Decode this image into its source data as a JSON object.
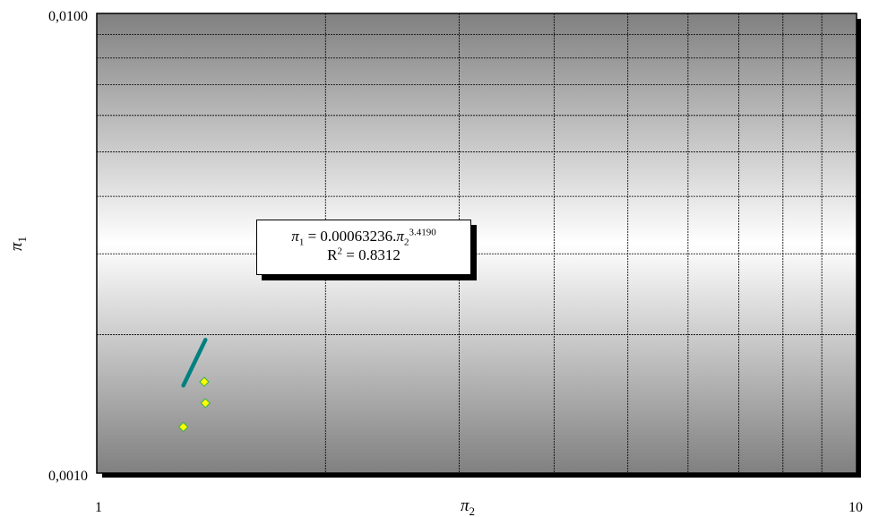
{
  "chart_data": {
    "type": "scatter",
    "xscale": "log",
    "yscale": "log",
    "xlim": [
      1,
      10
    ],
    "ylim": [
      0.001,
      0.01
    ],
    "x_tick_labels": [
      "1",
      "10"
    ],
    "y_tick_labels": [
      "0,0010",
      "0,0100"
    ],
    "xlabel": "π",
    "xlabel_sub": "2",
    "ylabel": "π",
    "ylabel_sub": "1",
    "grid": true,
    "points": [
      {
        "x": 1.3,
        "y": 0.00126
      },
      {
        "x": 1.385,
        "y": 0.00158
      },
      {
        "x": 1.39,
        "y": 0.00142
      }
    ],
    "trendline": {
      "type": "power",
      "coefficient": 0.00063236,
      "exponent": 3.419,
      "x_range": [
        1.3,
        1.39
      ],
      "equation_label": {
        "lhs_symbol": "π",
        "lhs_sub": "1",
        "equals_coef": " = 0.00063236.",
        "rhs_symbol": "π",
        "rhs_sub": "2",
        "rhs_exp": "3.4190",
        "r2_prefix": "R",
        "r2_exp": "2",
        "r2_suffix": " = 0.8312"
      }
    },
    "colors": {
      "marker_fill": "#ffff00",
      "marker_stroke": "#3cb043",
      "trendline": "#008080",
      "plot_gradient_edge": "#808080",
      "plot_gradient_center": "#ffffff",
      "grid": "#000000"
    }
  }
}
